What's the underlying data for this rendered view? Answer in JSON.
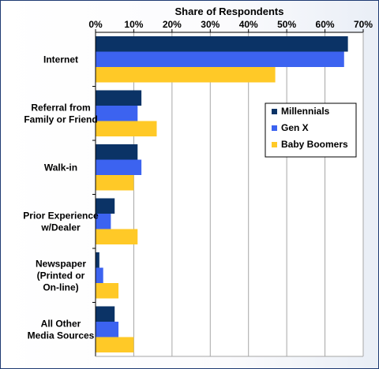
{
  "chart_data": {
    "type": "bar",
    "orientation": "horizontal",
    "title": "",
    "xlabel": "Share of Respondents",
    "xlim": [
      0,
      70
    ],
    "xticks": [
      "0%",
      "10%",
      "20%",
      "30%",
      "40%",
      "50%",
      "60%",
      "70%"
    ],
    "grid": true,
    "legend_position": "right",
    "categories": [
      [
        "Internet"
      ],
      [
        "Referral from",
        "Family or Friend"
      ],
      [
        "Walk-in"
      ],
      [
        "Prior Experience",
        "w/Dealer"
      ],
      [
        "Newspaper",
        "(Printed or",
        "On-line)"
      ],
      [
        "All Other",
        "Media Sources"
      ]
    ],
    "series": [
      {
        "name": "Millennials",
        "color": "#0b3366",
        "values": [
          66,
          12,
          11,
          5,
          1,
          5
        ]
      },
      {
        "name": "Gen X",
        "color": "#3c63f0",
        "values": [
          65,
          11,
          12,
          4,
          2,
          6
        ]
      },
      {
        "name": "Baby Boomers",
        "color": "#ffc927",
        "values": [
          47,
          16,
          10,
          11,
          6,
          10
        ]
      }
    ]
  }
}
